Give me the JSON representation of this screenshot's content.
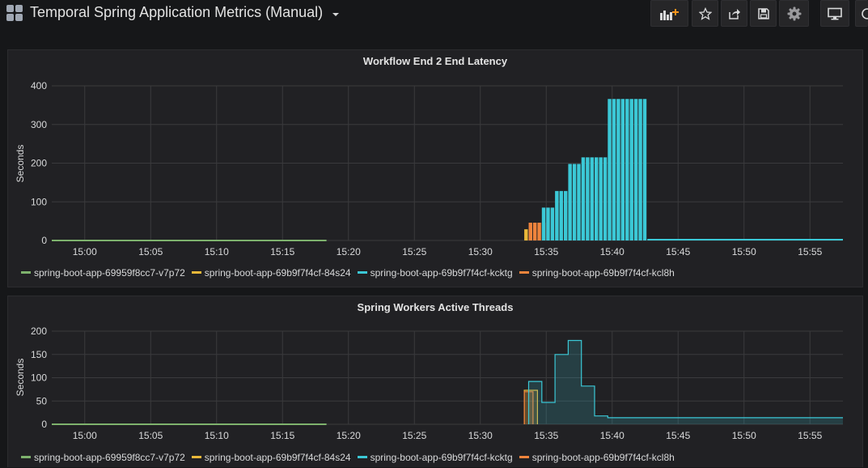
{
  "header": {
    "title": "Temporal Spring Application Metrics (Manual)",
    "buttons": [
      {
        "name": "add-panel-button",
        "icon": "add-panel-icon"
      },
      {
        "name": "star-button",
        "icon": "star-icon"
      },
      {
        "name": "share-button",
        "icon": "share-icon"
      },
      {
        "name": "save-button",
        "icon": "save-icon"
      },
      {
        "name": "settings-button",
        "icon": "gear-icon"
      },
      {
        "name": "tv-mode-button",
        "icon": "monitor-icon"
      },
      {
        "name": "time-picker-button",
        "icon": "clock-icon"
      }
    ]
  },
  "colors": {
    "green": "#7eb26d",
    "yellow": "#eab839",
    "cyan": "#3bc8d6",
    "orange": "#ef843c"
  },
  "chart_data": [
    {
      "type": "bar",
      "title": "Workflow End 2 End Latency",
      "ylabel": "Seconds",
      "ylim": [
        0,
        400
      ],
      "yticks": [
        "0",
        "100",
        "200",
        "300",
        "400"
      ],
      "xlim": [
        "14:57:30",
        "15:57:30"
      ],
      "xticks": [
        "15:00",
        "15:05",
        "15:10",
        "15:15",
        "15:20",
        "15:25",
        "15:30",
        "15:35",
        "15:40",
        "15:45",
        "15:50",
        "15:55"
      ],
      "grid": true,
      "legend": "bottom",
      "series": [
        {
          "name": "spring-boot-app-69959f8cc7-v7p72",
          "color": "green",
          "style": "line",
          "points": [
            [
              "14:57:30",
              0
            ],
            [
              "15:18:20",
              0
            ]
          ]
        },
        {
          "name": "spring-boot-app-69b9f7f4cf-84s24",
          "color": "yellow",
          "style": "bars",
          "points": [
            [
              "15:33:20",
              29
            ],
            [
              "15:33:40",
              29
            ]
          ]
        },
        {
          "name": "spring-boot-app-69b9f7f4cf-kcl8h",
          "color": "orange",
          "style": "bars",
          "points": [
            [
              "15:33:40",
              46
            ],
            [
              "15:34:00",
              46
            ],
            [
              "15:34:20",
              46
            ],
            [
              "15:34:40",
              46
            ]
          ]
        },
        {
          "name": "spring-boot-app-69b9f7f4cf-kcktg",
          "color": "cyan",
          "style": "bars",
          "points": [
            [
              "15:34:40",
              85
            ],
            [
              "15:35:00",
              85
            ],
            [
              "15:35:20",
              85
            ],
            [
              "15:35:40",
              128
            ],
            [
              "15:36:00",
              128
            ],
            [
              "15:36:20",
              128
            ],
            [
              "15:36:40",
              198
            ],
            [
              "15:37:00",
              198
            ],
            [
              "15:37:20",
              198
            ],
            [
              "15:37:40",
              215
            ],
            [
              "15:38:00",
              215
            ],
            [
              "15:38:20",
              215
            ],
            [
              "15:38:40",
              215
            ],
            [
              "15:39:00",
              215
            ],
            [
              "15:39:20",
              215
            ],
            [
              "15:39:40",
              366
            ],
            [
              "15:40:00",
              366
            ],
            [
              "15:40:20",
              366
            ],
            [
              "15:40:40",
              366
            ],
            [
              "15:41:00",
              366
            ],
            [
              "15:41:20",
              366
            ],
            [
              "15:41:40",
              366
            ],
            [
              "15:42:00",
              366
            ],
            [
              "15:42:20",
              366
            ],
            [
              "15:42:40",
              0
            ],
            [
              "15:57:30",
              0
            ]
          ]
        }
      ]
    },
    {
      "type": "line",
      "title": "Spring Workers Active Threads",
      "ylabel": "Seconds",
      "ylim": [
        0,
        200
      ],
      "yticks": [
        "0",
        "50",
        "100",
        "150",
        "200"
      ],
      "xlim": [
        "14:57:30",
        "15:57:30"
      ],
      "xticks": [
        "15:00",
        "15:05",
        "15:10",
        "15:15",
        "15:20",
        "15:25",
        "15:30",
        "15:35",
        "15:40",
        "15:45",
        "15:50",
        "15:55"
      ],
      "grid": true,
      "legend": "bottom",
      "series": [
        {
          "name": "spring-boot-app-69959f8cc7-v7p72",
          "color": "green",
          "style": "line",
          "points": [
            [
              "14:57:30",
              0
            ],
            [
              "15:18:20",
              0
            ]
          ]
        },
        {
          "name": "spring-boot-app-69b9f7f4cf-84s24",
          "color": "yellow",
          "style": "step",
          "points": [
            [
              "15:33:20",
              0
            ],
            [
              "15:33:20",
              73
            ],
            [
              "15:34:20",
              73
            ],
            [
              "15:34:20",
              0
            ]
          ]
        },
        {
          "name": "spring-boot-app-69b9f7f4cf-kcl8h",
          "color": "orange",
          "style": "step",
          "points": [
            [
              "15:33:20",
              0
            ],
            [
              "15:33:20",
              70
            ],
            [
              "15:34:00",
              70
            ],
            [
              "15:34:00",
              0
            ]
          ]
        },
        {
          "name": "spring-boot-app-69b9f7f4cf-kcktg",
          "color": "cyan",
          "style": "step",
          "points": [
            [
              "15:33:40",
              0
            ],
            [
              "15:33:40",
              92
            ],
            [
              "15:34:40",
              92
            ],
            [
              "15:34:40",
              47
            ],
            [
              "15:35:40",
              47
            ],
            [
              "15:35:40",
              150
            ],
            [
              "15:36:40",
              150
            ],
            [
              "15:36:40",
              180
            ],
            [
              "15:37:40",
              180
            ],
            [
              "15:37:40",
              82
            ],
            [
              "15:38:40",
              82
            ],
            [
              "15:38:40",
              18
            ],
            [
              "15:39:40",
              18
            ],
            [
              "15:39:40",
              14
            ],
            [
              "15:57:30",
              14
            ]
          ]
        }
      ]
    }
  ]
}
